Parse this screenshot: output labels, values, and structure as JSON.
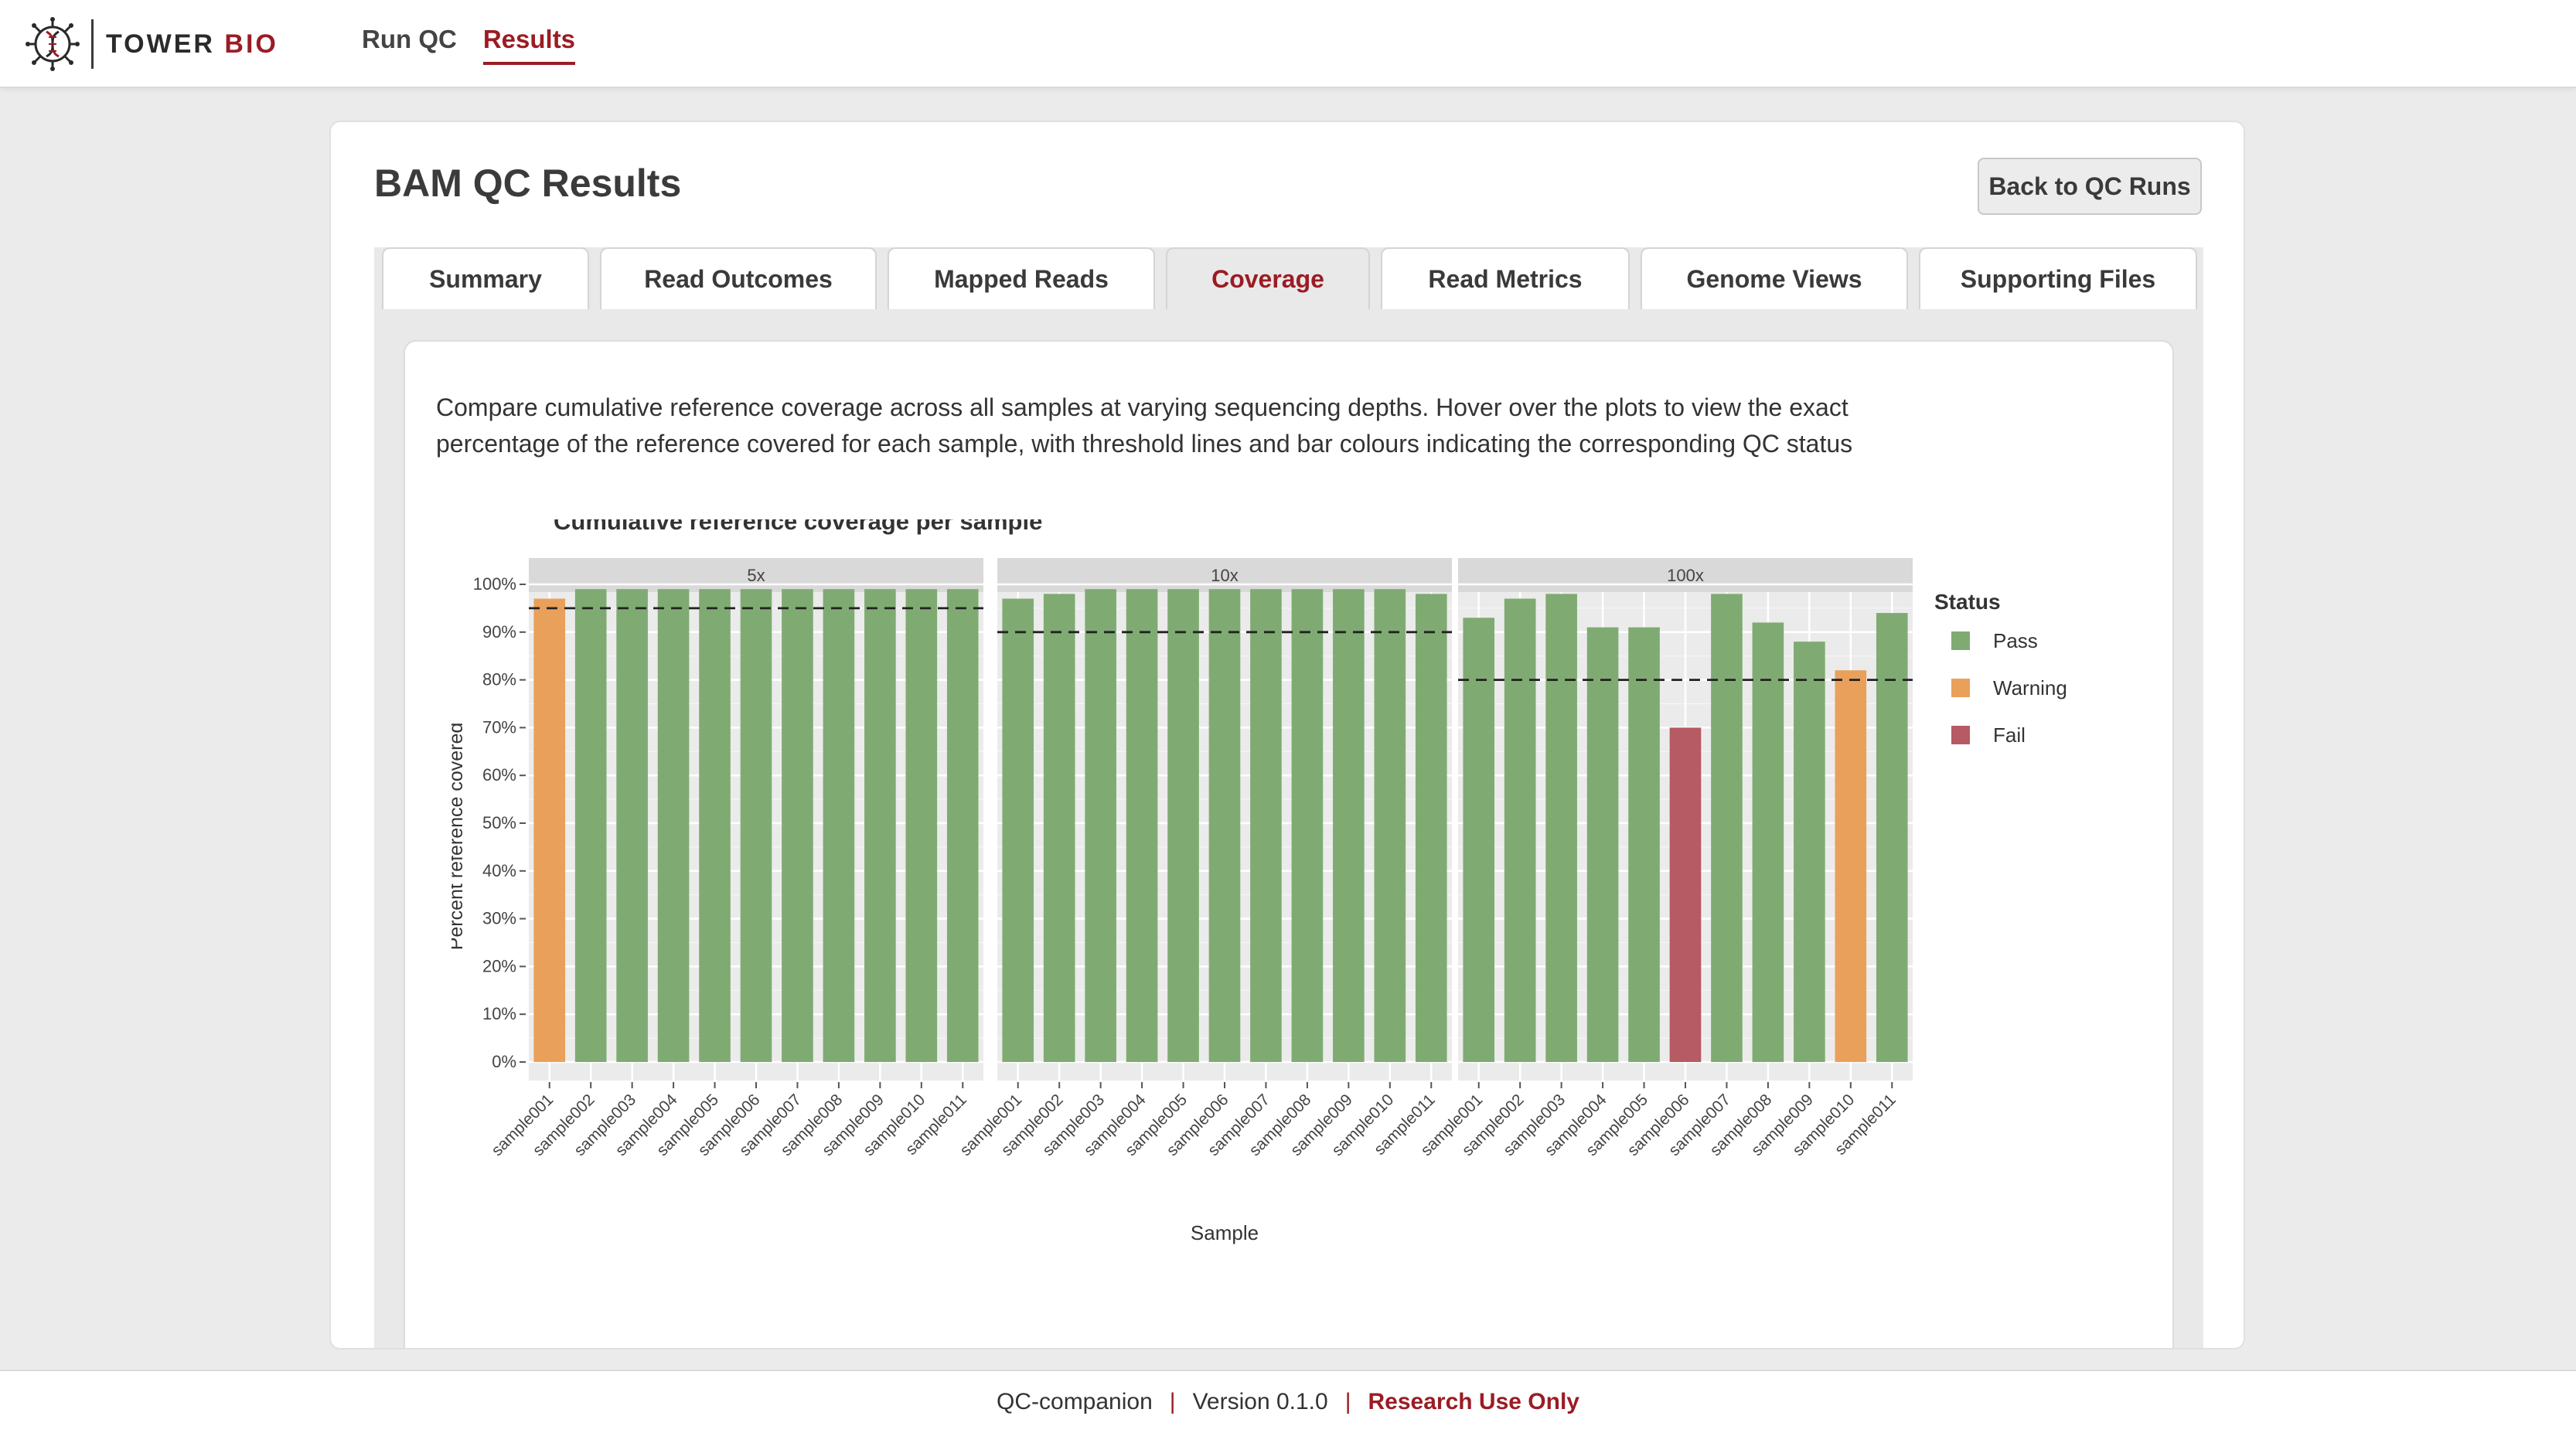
{
  "brand": {
    "name_main": "TOWER",
    "name_accent": "BIO",
    "accent_color": "#9b1c24"
  },
  "nav": [
    {
      "label": "Run QC",
      "active": false
    },
    {
      "label": "Results",
      "active": true
    }
  ],
  "page": {
    "title": "BAM QC Results",
    "back_button": "Back to QC Runs"
  },
  "tabs": [
    {
      "label": "Summary",
      "active": false
    },
    {
      "label": "Read Outcomes",
      "active": false
    },
    {
      "label": "Mapped Reads",
      "active": false
    },
    {
      "label": "Coverage",
      "active": true
    },
    {
      "label": "Read Metrics",
      "active": false
    },
    {
      "label": "Genome Views",
      "active": false
    },
    {
      "label": "Supporting Files",
      "active": false
    }
  ],
  "coverage": {
    "description": "Compare cumulative reference coverage across all samples at varying sequencing depths. Hover over the plots to view the exact percentage of the reference covered for each sample, with threshold lines and bar colours indicating the corresponding QC status"
  },
  "chart_data": {
    "type": "bar",
    "title": "Cumulative reference coverage per sample",
    "xlabel": "Sample",
    "ylabel": "Percent reference covered",
    "ylim": [
      0,
      100
    ],
    "yticks": [
      "0%",
      "10%",
      "20%",
      "30%",
      "40%",
      "50%",
      "60%",
      "70%",
      "80%",
      "90%",
      "100%"
    ],
    "grid": true,
    "legend": {
      "title": "Status",
      "placement": "right",
      "entries": [
        {
          "label": "Pass",
          "color": "#7fab72"
        },
        {
          "label": "Warning",
          "color": "#e9a05a"
        },
        {
          "label": "Fail",
          "color": "#b65a63"
        }
      ]
    },
    "categories": [
      "sample001",
      "sample002",
      "sample003",
      "sample004",
      "sample005",
      "sample006",
      "sample007",
      "sample008",
      "sample009",
      "sample010",
      "sample011"
    ],
    "facets": [
      {
        "name": "5x",
        "threshold": 95,
        "values": [
          97,
          99,
          99,
          99,
          99,
          99,
          99,
          99,
          99,
          99,
          99
        ],
        "status": [
          "Warning",
          "Pass",
          "Pass",
          "Pass",
          "Pass",
          "Pass",
          "Pass",
          "Pass",
          "Pass",
          "Pass",
          "Pass"
        ]
      },
      {
        "name": "10x",
        "threshold": 90,
        "values": [
          97,
          98,
          99,
          99,
          99,
          99,
          99,
          99,
          99,
          99,
          98
        ],
        "status": [
          "Pass",
          "Pass",
          "Pass",
          "Pass",
          "Pass",
          "Pass",
          "Pass",
          "Pass",
          "Pass",
          "Pass",
          "Pass"
        ]
      },
      {
        "name": "100x",
        "threshold": 80,
        "values": [
          93,
          97,
          98,
          91,
          91,
          70,
          98,
          92,
          88,
          82,
          94
        ],
        "status": [
          "Pass",
          "Pass",
          "Pass",
          "Pass",
          "Pass",
          "Fail",
          "Pass",
          "Pass",
          "Pass",
          "Warning",
          "Pass"
        ]
      }
    ]
  },
  "footer": {
    "app": "QC-companion",
    "version": "Version 0.1.0",
    "notice": "Research Use Only"
  }
}
